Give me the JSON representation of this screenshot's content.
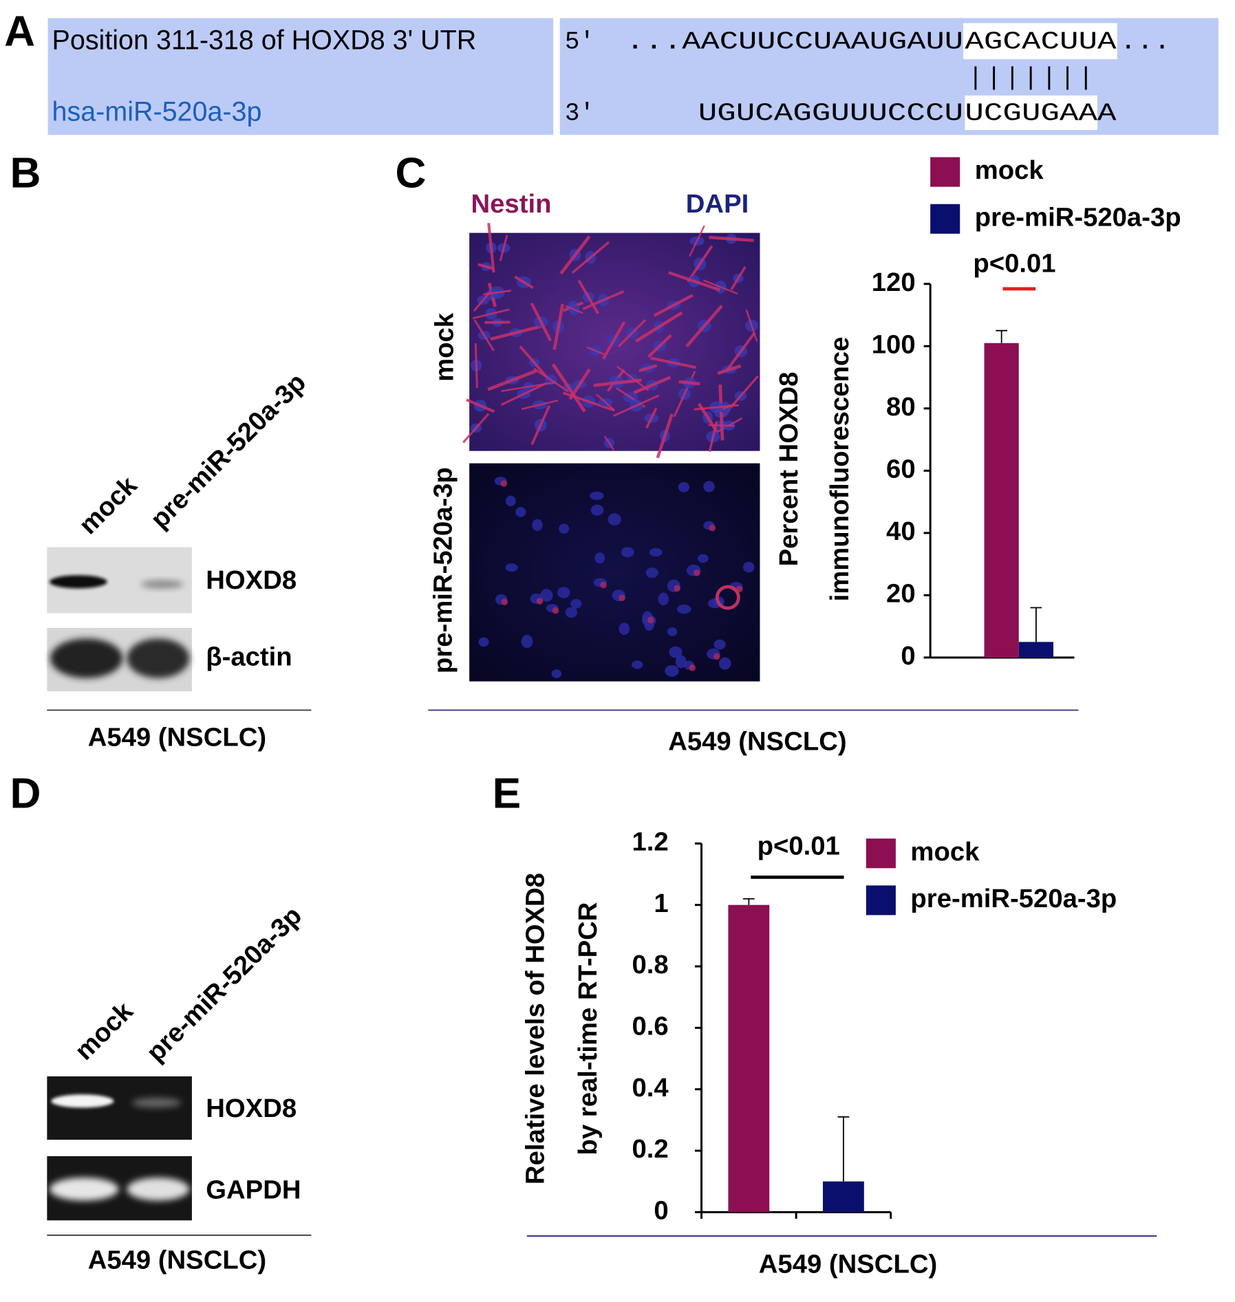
{
  "panel_a": {
    "label": "A",
    "target_label": "Position 311-318 of HOXD8 3' UTR",
    "target_end": "5'",
    "target_seq": [
      "...AACUUCCUAAUGAUU",
      "AGCACUUA",
      "..."
    ],
    "pairing": "|||||||",
    "mirna_label": "hsa-miR-520a-3p",
    "mirna_end": "3'",
    "mirna_seq": [
      "UGUCAGGUUUCCCU",
      "UCGUGAAA"
    ]
  },
  "panel_b": {
    "label": "B",
    "lanes": [
      "mock",
      "pre-miR-520a-3p"
    ],
    "bands": [
      "HOXD8",
      "β-actin"
    ],
    "cell_line": "A549 (NSCLC)"
  },
  "panel_c": {
    "label": "C",
    "stains": [
      "Nestin",
      "DAPI"
    ],
    "rows": [
      "mock",
      "pre-miR-520a-3p"
    ],
    "cell_line": "A549 (NSCLC)"
  },
  "panel_d": {
    "label": "D",
    "lanes": [
      "mock",
      "pre-miR-520a-3p"
    ],
    "bands": [
      "HOXD8",
      "GAPDH"
    ],
    "cell_line": "A549 (NSCLC)"
  },
  "panel_e": {
    "label": "E",
    "cell_line": "A549 (NSCLC)"
  },
  "chart_data": [
    {
      "type": "bar",
      "y_label": [
        "Percent HOXD8",
        "immunofluorescence"
      ],
      "annotation": "p<0.01",
      "categories": [
        null
      ],
      "series": [
        {
          "name": "mock",
          "color": "#8c0f52",
          "values": [
            101
          ],
          "errors": [
            4
          ]
        },
        {
          "name": "pre-miR-520a-3p",
          "color": "#0a0f6e",
          "values": [
            5
          ],
          "errors": [
            11
          ]
        }
      ],
      "ylim": [
        0,
        120
      ],
      "yticks": [
        0,
        20,
        40,
        60,
        80,
        100,
        120
      ],
      "grid": false,
      "legend": "top"
    },
    {
      "type": "bar",
      "y_label": [
        "Relative levels of HOXD8",
        "by real-time RT-PCR"
      ],
      "annotation": "p<0.01",
      "categories": [
        null,
        null
      ],
      "series": [
        {
          "name": "mock",
          "color": "#8c0f52",
          "values": [
            1,
            null
          ],
          "errors": [
            0.02,
            null
          ]
        },
        {
          "name": "pre-miR-520a-3p",
          "color": "#0a0f6e",
          "values": [
            null,
            0.1
          ],
          "errors": [
            null,
            0.21
          ]
        }
      ],
      "ylim": [
        0,
        1.2
      ],
      "yticks": [
        0,
        0.2,
        0.4,
        0.6,
        0.8,
        1,
        1.2
      ],
      "grid": false,
      "legend": "right"
    }
  ]
}
